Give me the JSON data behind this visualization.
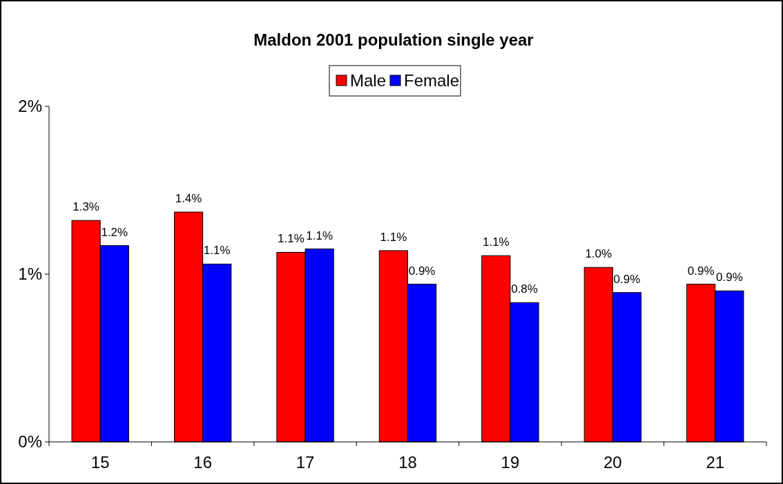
{
  "chart_data": {
    "type": "bar",
    "title": "Maldon  2001 population single year",
    "categories": [
      "15",
      "16",
      "17",
      "18",
      "19",
      "20",
      "21"
    ],
    "series": [
      {
        "name": "Male",
        "color": "#ff0000",
        "values": [
          1.32,
          1.37,
          1.13,
          1.14,
          1.11,
          1.04,
          0.94
        ],
        "value_labels": [
          "1.3%",
          "1.4%",
          "1.1%",
          "1.1%",
          "1.1%",
          "1.0%",
          "0.9%"
        ]
      },
      {
        "name": "Female",
        "color": "#0000ff",
        "values": [
          1.17,
          1.06,
          1.15,
          0.94,
          0.83,
          0.89,
          0.9
        ],
        "value_labels": [
          "1.2%",
          "1.1%",
          "1.1%",
          "0.9%",
          "0.8%",
          "0.9%",
          "0.9%"
        ]
      }
    ],
    "ylim": [
      0,
      2
    ],
    "yticks": [
      {
        "value": 0,
        "label": "0%"
      },
      {
        "value": 1,
        "label": "1%"
      },
      {
        "value": 2,
        "label": "2%"
      }
    ],
    "legend": "top",
    "grid": false
  }
}
